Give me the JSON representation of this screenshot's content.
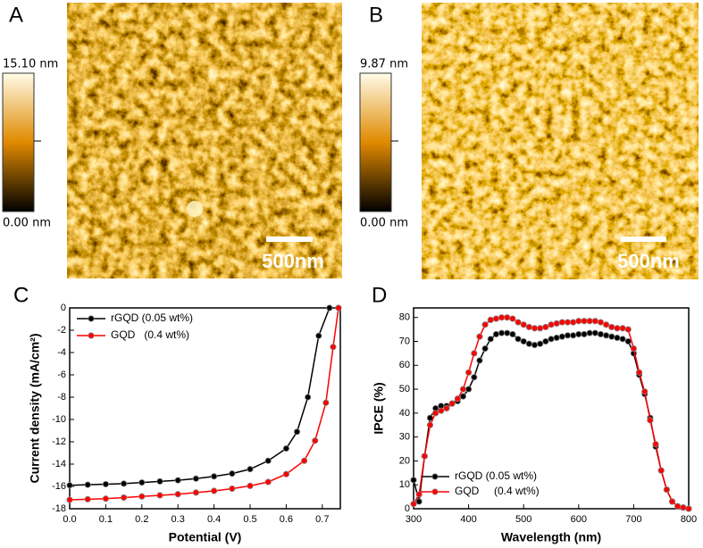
{
  "images": [
    {
      "label": "A",
      "scale_max": "15.10 nm",
      "scale_min": "0.00 nm",
      "scale_bar": "500nm"
    },
    {
      "label": "B",
      "scale_max": "9.87 nm",
      "scale_min": "0.00 nm",
      "scale_bar": "500nm"
    }
  ],
  "chart_data": [
    {
      "type": "line",
      "label": "C",
      "x_label": "Potential (V)",
      "y_label": "Current density (mA/cm²)",
      "xlim": [
        0,
        0.75
      ],
      "xticks": [
        {
          "value": 0,
          "label": "0.0"
        },
        0.1,
        0.2,
        0.3,
        0.4,
        0.5,
        0.6,
        0.7
      ],
      "ylim": [
        -18,
        0
      ],
      "yticks": [
        0,
        -2,
        -4,
        -6,
        -8,
        -10,
        -12,
        -14,
        -16,
        -18
      ],
      "legend": "top-left",
      "series": [
        {
          "name": "rGQD (0.05 wt%)",
          "color": "#000000",
          "x": [
            0,
            0.05,
            0.1,
            0.15,
            0.2,
            0.25,
            0.3,
            0.35,
            0.4,
            0.45,
            0.5,
            0.55,
            0.6,
            0.63,
            0.66,
            0.69,
            0.72
          ],
          "values": [
            -15.9,
            -15.85,
            -15.8,
            -15.75,
            -15.65,
            -15.55,
            -15.45,
            -15.3,
            -15.1,
            -14.85,
            -14.45,
            -13.7,
            -12.6,
            -11.1,
            -8,
            -2.5,
            0
          ]
        },
        {
          "name": "GQD   (0.4 wt%)",
          "color": "#ff0000",
          "x": [
            0,
            0.05,
            0.1,
            0.15,
            0.2,
            0.25,
            0.3,
            0.35,
            0.4,
            0.45,
            0.5,
            0.55,
            0.6,
            0.65,
            0.68,
            0.71,
            0.73,
            0.745
          ],
          "values": [
            -17.2,
            -17.15,
            -17.1,
            -17,
            -16.9,
            -16.8,
            -16.7,
            -16.55,
            -16.4,
            -16.2,
            -15.95,
            -15.6,
            -14.9,
            -13.7,
            -11.9,
            -8.5,
            -3.5,
            0
          ]
        }
      ]
    },
    {
      "type": "line",
      "label": "D",
      "x_label": "Wavelength (nm)",
      "y_label": "IPCE (%)",
      "xlim": [
        300,
        800
      ],
      "xticks": [
        300,
        400,
        500,
        600,
        700,
        800
      ],
      "ylim": [
        0,
        84
      ],
      "yticks": [
        0,
        10,
        20,
        30,
        40,
        50,
        60,
        70,
        80
      ],
      "legend": "bottom-left",
      "x": [
        300,
        310,
        320,
        330,
        340,
        350,
        360,
        370,
        380,
        390,
        400,
        410,
        420,
        430,
        440,
        450,
        460,
        470,
        480,
        490,
        500,
        510,
        520,
        530,
        540,
        550,
        560,
        570,
        580,
        590,
        600,
        610,
        620,
        630,
        640,
        650,
        660,
        670,
        680,
        690,
        700,
        710,
        720,
        730,
        740,
        750,
        760,
        770,
        780,
        790,
        800
      ],
      "series": [
        {
          "name": "rGQD (0.05 wt%)",
          "color": "#000000",
          "values": [
            12,
            3,
            22,
            38,
            42,
            43,
            43,
            44,
            45,
            47,
            50,
            55,
            62,
            67,
            71,
            73,
            73.5,
            73.5,
            73,
            71,
            70,
            69,
            68.5,
            69,
            70,
            71,
            71.5,
            72,
            72.5,
            72.5,
            73,
            73,
            73.5,
            73.5,
            73,
            72.5,
            72,
            71.5,
            71,
            70,
            65,
            56,
            48,
            38,
            26,
            16,
            8,
            3,
            1,
            0.5,
            0
          ]
        },
        {
          "name": "GQD     (0.4 wt%)",
          "color": "#ff0000",
          "values": [
            2,
            6,
            22,
            35,
            40,
            41,
            42,
            44,
            46,
            50,
            57,
            65,
            72,
            77,
            79,
            79.5,
            80,
            80,
            79.5,
            78,
            77,
            76,
            75.5,
            75.5,
            76,
            77,
            77.5,
            78,
            78,
            78,
            78.5,
            78.5,
            78.5,
            78.5,
            78,
            77,
            76,
            75.5,
            75.5,
            75,
            67,
            57,
            49,
            37,
            27,
            16,
            8,
            3,
            1,
            0.5,
            0
          ]
        }
      ]
    }
  ]
}
